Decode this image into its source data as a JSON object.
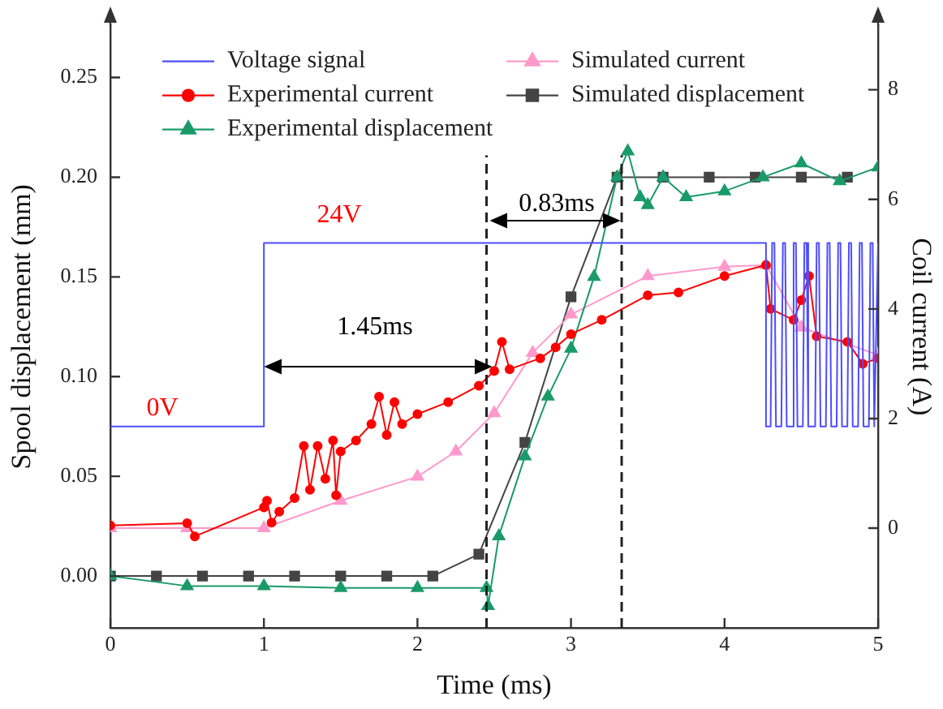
{
  "chart_data": {
    "type": "line",
    "xlabel": "Time (ms)",
    "ylabel": "Spool displacement (mm)",
    "y2label": "Coil current (A)",
    "xlim": [
      0,
      5
    ],
    "xticks": [
      0,
      1,
      2,
      3,
      4,
      5
    ],
    "ylim": [
      -0.026,
      0.276
    ],
    "yticks": [
      {
        "value": 0,
        "label": "0.00"
      },
      {
        "value": 0.05,
        "label": "0.05"
      },
      {
        "value": 0.1,
        "label": "0.10"
      },
      {
        "value": 0.15,
        "label": "0.15"
      },
      {
        "value": 0.2,
        "label": "0.20"
      },
      {
        "value": 0.25,
        "label": "0.25"
      }
    ],
    "y2lim": [
      -1.82,
      9.17
    ],
    "y2ticks": [
      0,
      2,
      4,
      6,
      8
    ],
    "grid": false,
    "legend": "top left",
    "line_style": "solid",
    "series": [
      {
        "name": "Voltage signal",
        "color": "#4d4dff",
        "marker": "none",
        "x": [
          0,
          1,
          1,
          4.27,
          4.27,
          4.3,
          4.31,
          4.325,
          4.335,
          4.37,
          4.38,
          4.395,
          4.405,
          4.44,
          4.45,
          4.465,
          4.475,
          4.51,
          4.52,
          4.535,
          4.545,
          4.59,
          4.6,
          4.615,
          4.625,
          4.66,
          4.67,
          4.685,
          4.695,
          4.73,
          4.74,
          4.755,
          4.765,
          4.8,
          4.81,
          4.825,
          4.835,
          4.87,
          4.88,
          4.895,
          4.905,
          4.94,
          4.95,
          4.965,
          4.975,
          5.0
        ],
        "values": [
          0.075,
          0.075,
          0.167,
          0.167,
          0.075,
          0.075,
          0.167,
          0.167,
          0.075,
          0.075,
          0.167,
          0.167,
          0.075,
          0.075,
          0.167,
          0.167,
          0.075,
          0.075,
          0.167,
          0.167,
          0.075,
          0.075,
          0.167,
          0.167,
          0.075,
          0.075,
          0.167,
          0.167,
          0.075,
          0.075,
          0.167,
          0.167,
          0.075,
          0.075,
          0.167,
          0.167,
          0.075,
          0.075,
          0.167,
          0.167,
          0.075,
          0.075,
          0.167,
          0.167,
          0.075,
          0.167
        ]
      },
      {
        "name": "Experimental current",
        "color": "#ff0000",
        "marker": "circle",
        "axis": "y2",
        "x": [
          0,
          0.5,
          0.55,
          1.0,
          1.02,
          1.05,
          1.1,
          1.2,
          1.26,
          1.3,
          1.35,
          1.4,
          1.45,
          1.47,
          1.5,
          1.6,
          1.7,
          1.75,
          1.8,
          1.85,
          1.9,
          2.0,
          2.2,
          2.4,
          2.5,
          2.55,
          2.6,
          2.8,
          2.9,
          3.0,
          3.2,
          3.5,
          3.7,
          4.0,
          4.27,
          4.3,
          4.45,
          4.5,
          4.55,
          4.6,
          4.8,
          4.9,
          5.0
        ],
        "values": [
          0.05,
          0.09,
          -0.15,
          0.38,
          0.5,
          0.1,
          0.3,
          0.55,
          1.5,
          0.7,
          1.5,
          0.9,
          1.6,
          0.6,
          1.4,
          1.6,
          1.9,
          2.4,
          1.7,
          2.3,
          1.9,
          2.08,
          2.3,
          2.6,
          2.87,
          3.4,
          2.9,
          3.1,
          3.3,
          3.54,
          3.8,
          4.25,
          4.3,
          4.6,
          4.8,
          4.0,
          3.8,
          4.16,
          4.6,
          3.5,
          3.4,
          3.0,
          3.1
        ]
      },
      {
        "name": "Experimental displacement",
        "color": "#1a9a6a",
        "marker": "triangle",
        "x": [
          0,
          0.5,
          1.0,
          1.5,
          2.0,
          2.45,
          2.46,
          2.53,
          2.7,
          2.85,
          3.0,
          3.15,
          3.3,
          3.37,
          3.45,
          3.5,
          3.6,
          3.75,
          4.0,
          4.25,
          4.5,
          4.75,
          5.0
        ],
        "values": [
          0,
          -0.005,
          -0.005,
          -0.006,
          -0.006,
          -0.006,
          -0.015,
          0.02,
          0.06,
          0.09,
          0.114,
          0.15,
          0.2,
          0.213,
          0.19,
          0.186,
          0.2,
          0.19,
          0.193,
          0.2,
          0.207,
          0.198,
          0.205
        ]
      },
      {
        "name": "Simulated current",
        "color": "#ff99cc",
        "marker": "triangle",
        "axis": "y2",
        "x": [
          0,
          0.5,
          1.0,
          1.5,
          2.0,
          2.25,
          2.5,
          2.75,
          3.0,
          3.5,
          4.0,
          4.27,
          4.5,
          5.0
        ],
        "values": [
          0,
          0,
          0,
          0.5,
          0.94,
          1.4,
          2.1,
          3.2,
          3.9,
          4.6,
          4.77,
          4.8,
          3.66,
          3.16
        ]
      },
      {
        "name": "Simulated displacement",
        "color": "#444444",
        "marker": "square",
        "x": [
          0,
          0.3,
          0.6,
          0.9,
          1.2,
          1.5,
          1.8,
          2.1,
          2.4,
          2.7,
          3.0,
          3.3,
          3.6,
          3.9,
          4.2,
          4.5,
          4.8
        ],
        "values": [
          0,
          0,
          0,
          0,
          0,
          0,
          0,
          0,
          0.011,
          0.067,
          0.14,
          0.2,
          0.2,
          0.2,
          0.2,
          0.2,
          0.2
        ]
      }
    ],
    "ref_lines": [
      {
        "axis": "x",
        "value": 2.45,
        "line_style": "dashed",
        "color": "#222222"
      },
      {
        "axis": "x",
        "value": 3.33,
        "line_style": "dashed",
        "color": "#222222"
      }
    ],
    "annotations": [
      "24V",
      "0V",
      "1.45ms",
      "0.83ms"
    ]
  }
}
